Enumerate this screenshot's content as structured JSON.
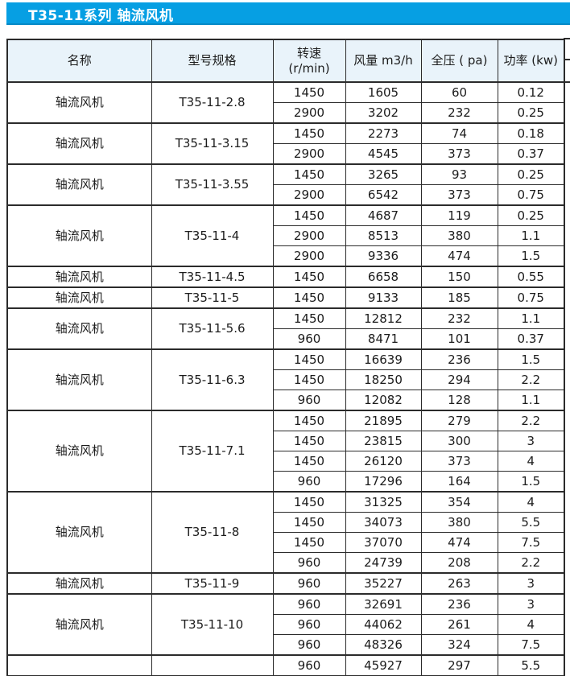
{
  "banner": {
    "title": "T35-11系列 轴流风机"
  },
  "colors": {
    "banner_blue": "#069fe3",
    "header_bg": "#e9f3fa",
    "border": "#2b2b2b",
    "text": "#1c1c1c"
  },
  "table": {
    "columns": [
      "名称",
      "型号规格",
      "转速\n(r/min)",
      "风量 m3/h",
      "全压 ( pa)",
      "功率 (kw)"
    ],
    "groups": [
      {
        "name": "轴流风机",
        "model": "T35-11-2.8",
        "rows": [
          [
            "1450",
            "1605",
            "60",
            "0.12"
          ],
          [
            "2900",
            "3202",
            "232",
            "0.25"
          ]
        ]
      },
      {
        "name": "轴流风机",
        "model": "T35-11-3.15",
        "rows": [
          [
            "1450",
            "2273",
            "74",
            "0.18"
          ],
          [
            "2900",
            "4545",
            "373",
            "0.37"
          ]
        ]
      },
      {
        "name": "轴流风机",
        "model": "T35-11-3.55",
        "rows": [
          [
            "1450",
            "3265",
            "93",
            "0.25"
          ],
          [
            "2900",
            "6542",
            "373",
            "0.75"
          ]
        ]
      },
      {
        "name": "轴流风机",
        "model": "T35-11-4",
        "rows": [
          [
            "1450",
            "4687",
            "119",
            "0.25"
          ],
          [
            "2900",
            "8513",
            "380",
            "1.1"
          ],
          [
            "2900",
            "9336",
            "474",
            "1.5"
          ]
        ]
      },
      {
        "name": "轴流风机",
        "model": "T35-11-4.5",
        "rows": [
          [
            "1450",
            "6658",
            "150",
            "0.55"
          ]
        ]
      },
      {
        "name": "轴流风机",
        "model": "T35-11-5",
        "rows": [
          [
            "1450",
            "9133",
            "185",
            "0.75"
          ]
        ]
      },
      {
        "name": "轴流风机",
        "model": "T35-11-5.6",
        "rows": [
          [
            "1450",
            "12812",
            "232",
            "1.1"
          ],
          [
            "960",
            "8471",
            "101",
            "0.37"
          ]
        ]
      },
      {
        "name": "轴流风机",
        "model": "T35-11-6.3",
        "rows": [
          [
            "1450",
            "16639",
            "236",
            "1.5"
          ],
          [
            "1450",
            "18250",
            "294",
            "2.2"
          ],
          [
            "960",
            "12082",
            "128",
            "1.1"
          ]
        ]
      },
      {
        "name": "轴流风机",
        "model": "T35-11-7.1",
        "rows": [
          [
            "1450",
            "21895",
            "279",
            "2.2"
          ],
          [
            "1450",
            "23815",
            "300",
            "3"
          ],
          [
            "1450",
            "26120",
            "373",
            "4"
          ],
          [
            "960",
            "17296",
            "164",
            "1.5"
          ]
        ]
      },
      {
        "name": "轴流风机",
        "model": "T35-11-8",
        "rows": [
          [
            "1450",
            "31325",
            "354",
            "4"
          ],
          [
            "1450",
            "34073",
            "380",
            "5.5"
          ],
          [
            "1450",
            "37070",
            "474",
            "7.5"
          ],
          [
            "960",
            "24739",
            "208",
            "2.2"
          ]
        ]
      },
      {
        "name": "轴流风机",
        "model": "T35-11-9",
        "rows": [
          [
            "960",
            "35227",
            "263",
            "3"
          ]
        ]
      },
      {
        "name": "轴流风机",
        "model": "T35-11-10",
        "rows": [
          [
            "960",
            "32691",
            "236",
            "3"
          ],
          [
            "960",
            "44062",
            "261",
            "4"
          ],
          [
            "960",
            "48326",
            "324",
            "7.5"
          ]
        ]
      },
      {
        "name": "",
        "model": "",
        "rows": [
          [
            "960",
            "45927",
            "297",
            "5.5"
          ]
        ]
      }
    ]
  }
}
